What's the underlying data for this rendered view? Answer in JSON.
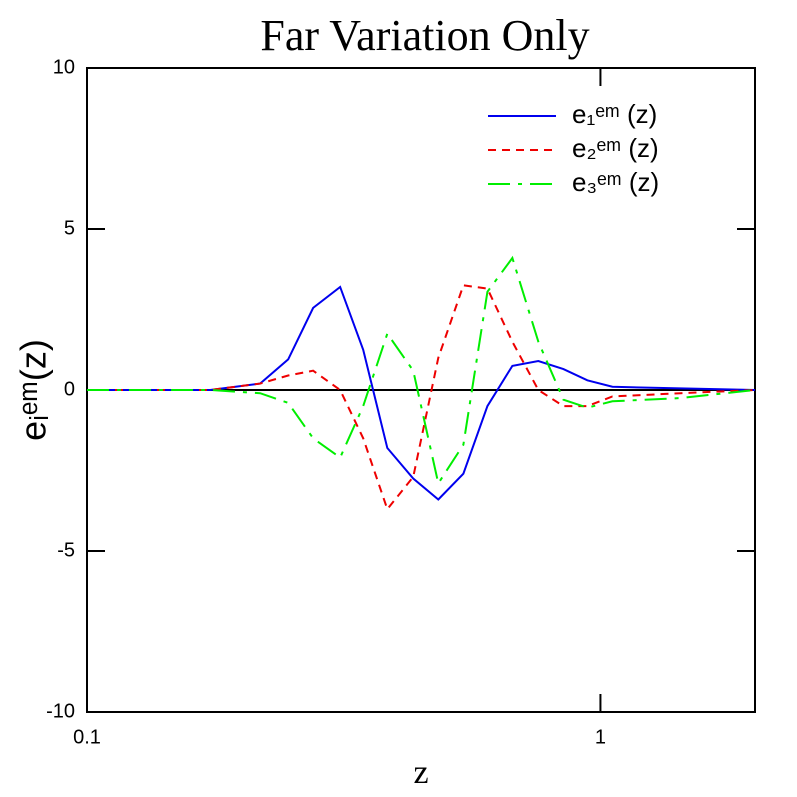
{
  "chart_data": {
    "type": "line",
    "title": "Far Variation Only",
    "xlabel": "z",
    "ylabel": "eᵢᵉᵐ(z)",
    "x": [
      0.1,
      0.1737,
      0.2174,
      0.2465,
      0.2757,
      0.3112,
      0.3451,
      0.3845,
      0.4319,
      0.4833,
      0.5408,
      0.6024,
      0.6737,
      0.7569,
      0.847,
      0.943,
      1.055,
      1.432,
      2.0
    ],
    "series": [
      {
        "name": "e₁ᵉᵐ (z)",
        "color": "#0000ee",
        "dash": "solid",
        "values": [
          0,
          0,
          0.2,
          0.95,
          2.55,
          3.2,
          1.25,
          -1.8,
          -2.75,
          -3.4,
          -2.6,
          -0.5,
          0.75,
          0.9,
          0.65,
          0.3,
          0.1,
          0.05,
          0
        ]
      },
      {
        "name": "e₂ᵉᵐ (z)",
        "color": "#ee0000",
        "dash": "short",
        "values": [
          0,
          0,
          0.2,
          0.45,
          0.6,
          0.0,
          -1.5,
          -3.7,
          -2.7,
          1.0,
          3.25,
          3.15,
          1.5,
          0.0,
          -0.5,
          -0.5,
          -0.2,
          -0.1,
          0
        ]
      },
      {
        "name": "e₃ᵉᵐ (z)",
        "color": "#00ee00",
        "dash": "long",
        "values": [
          0,
          0,
          -0.1,
          -0.4,
          -1.5,
          -2.1,
          -0.5,
          1.75,
          0.6,
          -2.9,
          -1.7,
          3.05,
          4.1,
          1.5,
          -0.3,
          -0.55,
          -0.35,
          -0.25,
          0
        ]
      }
    ],
    "xlim": [
      0.1,
      2.0
    ],
    "xticks": [
      0.1,
      1
    ],
    "xlog": true,
    "ylim": [
      -10,
      10
    ],
    "yticks": [
      -10,
      -5,
      0,
      5,
      10
    ],
    "legend": "upper right"
  }
}
